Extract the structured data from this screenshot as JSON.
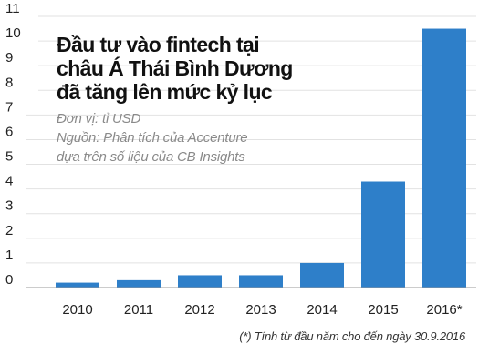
{
  "chart_data": {
    "type": "bar",
    "title_lines": [
      "Đầu tư vào fintech tại",
      "châu Á  Thái Bình Dương",
      "đã tăng lên mức kỷ lục"
    ],
    "unit": "Đơn vị: tỉ USD",
    "source_lines": [
      "Nguồn: Phân tích của Accenture",
      "dựa trên số liệu của CB Insights"
    ],
    "categories": [
      "2010",
      "2011",
      "2012",
      "2013",
      "2014",
      "2015",
      "2016*"
    ],
    "values": [
      0.2,
      0.3,
      0.5,
      0.5,
      1.0,
      4.3,
      10.5
    ],
    "y_ticks": [
      "0",
      "1",
      "2",
      "3",
      "4",
      "5",
      "6",
      "7",
      "8",
      "9",
      "10",
      "11"
    ],
    "ylim": [
      0,
      11
    ],
    "grid": "horizontal",
    "bar_color": "#2e7fc9",
    "grid_color": "#e2e2e2",
    "footnote": "(*) Tính từ đầu năm cho đến ngày 30.9.2016"
  }
}
